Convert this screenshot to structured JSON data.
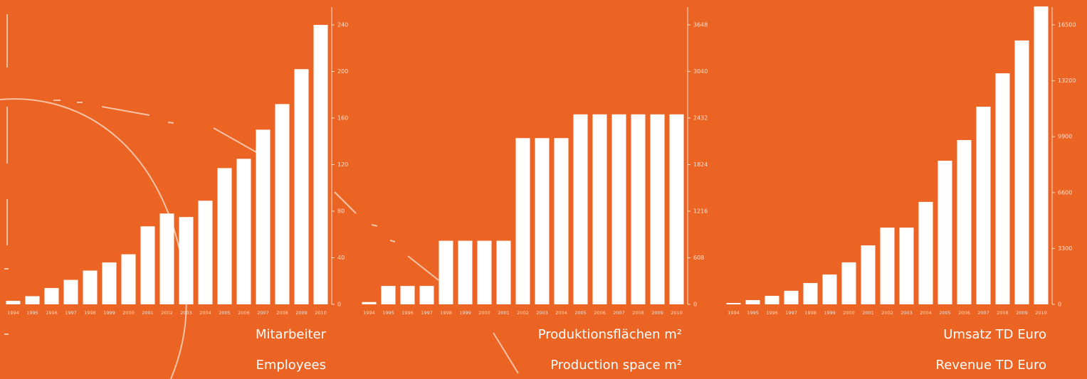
{
  "chart_data": [
    {
      "type": "bar",
      "title": "Mitarbeiter",
      "subtitle": "Employees",
      "color": "#ffffff",
      "categories": [
        "1994",
        "1995",
        "1996",
        "1997",
        "1998",
        "1999",
        "2000",
        "2001",
        "2002",
        "2003",
        "2004",
        "2005",
        "2006",
        "2007",
        "2008",
        "2009",
        "2010"
      ],
      "values": [
        3,
        7,
        14,
        21,
        29,
        36,
        43,
        67,
        78,
        75,
        89,
        117,
        125,
        150,
        172,
        202,
        240
      ],
      "ylim": [
        0,
        240
      ],
      "yticks": [
        0,
        40,
        80,
        120,
        160,
        200,
        240
      ]
    },
    {
      "type": "bar",
      "title": "Produktionsflächen m²",
      "subtitle": "Production space m²",
      "color": "#ffffff",
      "categories": [
        "1994",
        "1995",
        "1996",
        "1997",
        "1998",
        "1999",
        "2000",
        "2001",
        "2002",
        "2003",
        "2004",
        "2005",
        "2006",
        "2007",
        "2008",
        "2009",
        "2010"
      ],
      "values": [
        30,
        240,
        240,
        240,
        830,
        830,
        830,
        830,
        2170,
        2170,
        2170,
        2480,
        2480,
        2480,
        2480,
        2480,
        2480
      ],
      "ylim": [
        0,
        3648
      ],
      "yticks": [
        0,
        608,
        1216,
        1824,
        2432,
        3040,
        3648
      ]
    },
    {
      "type": "bar",
      "title": "Umsatz TD Euro",
      "subtitle": "Revenue TD Euro",
      "color": "#ffffff",
      "categories": [
        "1994",
        "1995",
        "1996",
        "1997",
        "1998",
        "1999",
        "2000",
        "2001",
        "2002",
        "2003",
        "2004",
        "2005",
        "2006",
        "2007",
        "2008",
        "2009",
        "2010"
      ],
      "values": [
        80,
        250,
        500,
        800,
        1260,
        1760,
        2480,
        3480,
        4530,
        4530,
        6050,
        8480,
        9700,
        11670,
        13640,
        15580,
        17590
      ],
      "ylim": [
        0,
        16500
      ],
      "yticks": [
        0,
        3300,
        6600,
        9900,
        13200,
        16500
      ]
    }
  ]
}
